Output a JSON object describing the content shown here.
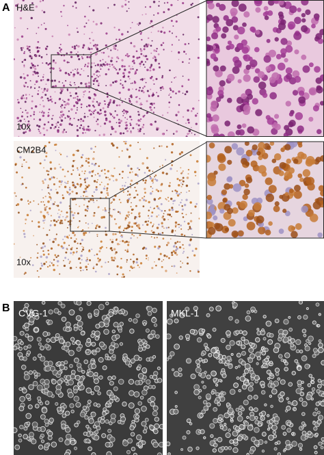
{
  "panel_a": {
    "label": "A",
    "he": {
      "stain": "H&E",
      "magnification": "10x"
    },
    "cm2b4": {
      "stain": "CM2B4",
      "magnification": "10x"
    }
  },
  "panel_b": {
    "label": "B",
    "cell_lines": [
      "CVG-1",
      "MKL-1"
    ]
  }
}
